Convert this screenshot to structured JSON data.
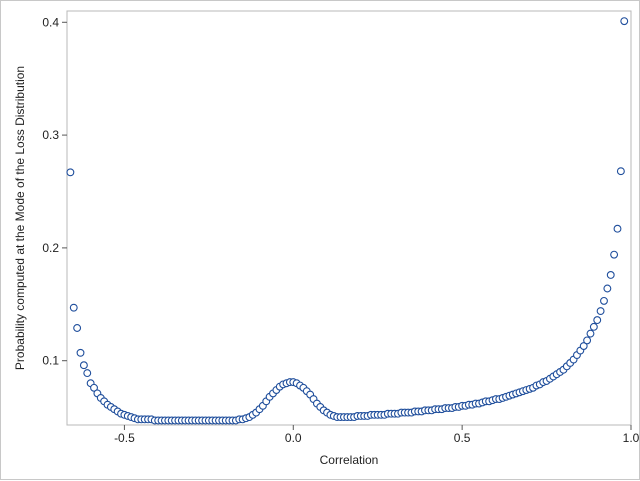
{
  "chart_data": {
    "type": "scatter",
    "title": "",
    "xlabel": "Correlation",
    "ylabel": "Probability computed at the Mode of the Loss Distribution",
    "xlim": [
      -0.67,
      1.0
    ],
    "ylim": [
      0.043,
      0.41
    ],
    "xticks": [
      -0.5,
      0.0,
      0.5,
      1.0
    ],
    "xtick_labels": [
      "-0.5",
      "0.0",
      "0.5",
      "1.0"
    ],
    "yticks": [
      0.1,
      0.2,
      0.3,
      0.4
    ],
    "ytick_labels": [
      "0.1",
      "0.2",
      "0.3",
      "0.4"
    ],
    "grid": false,
    "legend": "none",
    "marker": "open-circle",
    "marker_color": "#1f4e9c",
    "points": [
      [
        -0.66,
        0.267
      ],
      [
        -0.65,
        0.147
      ],
      [
        -0.64,
        0.129
      ],
      [
        -0.63,
        0.107
      ],
      [
        -0.62,
        0.096
      ],
      [
        -0.61,
        0.089
      ],
      [
        -0.6,
        0.08
      ],
      [
        -0.59,
        0.076
      ],
      [
        -0.58,
        0.071
      ],
      [
        -0.57,
        0.067
      ],
      [
        -0.56,
        0.064
      ],
      [
        -0.55,
        0.061
      ],
      [
        -0.54,
        0.059
      ],
      [
        -0.53,
        0.057
      ],
      [
        -0.52,
        0.055
      ],
      [
        -0.51,
        0.053
      ],
      [
        -0.5,
        0.052
      ],
      [
        -0.49,
        0.051
      ],
      [
        -0.48,
        0.05
      ],
      [
        -0.47,
        0.049
      ],
      [
        -0.46,
        0.048
      ],
      [
        -0.45,
        0.048
      ],
      [
        -0.44,
        0.048
      ],
      [
        -0.43,
        0.048
      ],
      [
        -0.42,
        0.048
      ],
      [
        -0.41,
        0.047
      ],
      [
        -0.4,
        0.047
      ],
      [
        -0.39,
        0.047
      ],
      [
        -0.38,
        0.047
      ],
      [
        -0.37,
        0.047
      ],
      [
        -0.36,
        0.047
      ],
      [
        -0.35,
        0.047
      ],
      [
        -0.34,
        0.047
      ],
      [
        -0.33,
        0.047
      ],
      [
        -0.32,
        0.047
      ],
      [
        -0.31,
        0.047
      ],
      [
        -0.3,
        0.047
      ],
      [
        -0.29,
        0.047
      ],
      [
        -0.28,
        0.047
      ],
      [
        -0.27,
        0.047
      ],
      [
        -0.26,
        0.047
      ],
      [
        -0.25,
        0.047
      ],
      [
        -0.24,
        0.047
      ],
      [
        -0.23,
        0.047
      ],
      [
        -0.22,
        0.047
      ],
      [
        -0.21,
        0.047
      ],
      [
        -0.2,
        0.047
      ],
      [
        -0.19,
        0.047
      ],
      [
        -0.18,
        0.047
      ],
      [
        -0.17,
        0.047
      ],
      [
        -0.16,
        0.048
      ],
      [
        -0.15,
        0.048
      ],
      [
        -0.14,
        0.049
      ],
      [
        -0.13,
        0.05
      ],
      [
        -0.12,
        0.052
      ],
      [
        -0.11,
        0.054
      ],
      [
        -0.1,
        0.057
      ],
      [
        -0.09,
        0.06
      ],
      [
        -0.08,
        0.064
      ],
      [
        -0.07,
        0.068
      ],
      [
        -0.06,
        0.071
      ],
      [
        -0.05,
        0.074
      ],
      [
        -0.04,
        0.077
      ],
      [
        -0.03,
        0.079
      ],
      [
        -0.02,
        0.08
      ],
      [
        -0.01,
        0.081
      ],
      [
        0.0,
        0.081
      ],
      [
        0.01,
        0.08
      ],
      [
        0.02,
        0.078
      ],
      [
        0.03,
        0.076
      ],
      [
        0.04,
        0.073
      ],
      [
        0.05,
        0.07
      ],
      [
        0.06,
        0.066
      ],
      [
        0.07,
        0.062
      ],
      [
        0.08,
        0.059
      ],
      [
        0.09,
        0.056
      ],
      [
        0.1,
        0.054
      ],
      [
        0.11,
        0.052
      ],
      [
        0.12,
        0.051
      ],
      [
        0.13,
        0.05
      ],
      [
        0.14,
        0.05
      ],
      [
        0.15,
        0.05
      ],
      [
        0.16,
        0.05
      ],
      [
        0.17,
        0.05
      ],
      [
        0.18,
        0.05
      ],
      [
        0.19,
        0.051
      ],
      [
        0.2,
        0.051
      ],
      [
        0.21,
        0.051
      ],
      [
        0.22,
        0.051
      ],
      [
        0.23,
        0.052
      ],
      [
        0.24,
        0.052
      ],
      [
        0.25,
        0.052
      ],
      [
        0.26,
        0.052
      ],
      [
        0.27,
        0.052
      ],
      [
        0.28,
        0.053
      ],
      [
        0.29,
        0.053
      ],
      [
        0.3,
        0.053
      ],
      [
        0.31,
        0.053
      ],
      [
        0.32,
        0.054
      ],
      [
        0.33,
        0.054
      ],
      [
        0.34,
        0.054
      ],
      [
        0.35,
        0.054
      ],
      [
        0.36,
        0.055
      ],
      [
        0.37,
        0.055
      ],
      [
        0.38,
        0.055
      ],
      [
        0.39,
        0.056
      ],
      [
        0.4,
        0.056
      ],
      [
        0.41,
        0.056
      ],
      [
        0.42,
        0.057
      ],
      [
        0.43,
        0.057
      ],
      [
        0.44,
        0.057
      ],
      [
        0.45,
        0.058
      ],
      [
        0.46,
        0.058
      ],
      [
        0.47,
        0.058
      ],
      [
        0.48,
        0.059
      ],
      [
        0.49,
        0.059
      ],
      [
        0.5,
        0.06
      ],
      [
        0.51,
        0.06
      ],
      [
        0.52,
        0.061
      ],
      [
        0.53,
        0.061
      ],
      [
        0.54,
        0.062
      ],
      [
        0.55,
        0.062
      ],
      [
        0.56,
        0.063
      ],
      [
        0.57,
        0.064
      ],
      [
        0.58,
        0.064
      ],
      [
        0.59,
        0.065
      ],
      [
        0.6,
        0.066
      ],
      [
        0.61,
        0.066
      ],
      [
        0.62,
        0.067
      ],
      [
        0.63,
        0.068
      ],
      [
        0.64,
        0.069
      ],
      [
        0.65,
        0.07
      ],
      [
        0.66,
        0.071
      ],
      [
        0.67,
        0.072
      ],
      [
        0.68,
        0.073
      ],
      [
        0.69,
        0.074
      ],
      [
        0.7,
        0.075
      ],
      [
        0.71,
        0.076
      ],
      [
        0.72,
        0.078
      ],
      [
        0.73,
        0.079
      ],
      [
        0.74,
        0.081
      ],
      [
        0.75,
        0.082
      ],
      [
        0.76,
        0.084
      ],
      [
        0.77,
        0.086
      ],
      [
        0.78,
        0.088
      ],
      [
        0.79,
        0.09
      ],
      [
        0.8,
        0.092
      ],
      [
        0.81,
        0.095
      ],
      [
        0.82,
        0.098
      ],
      [
        0.83,
        0.101
      ],
      [
        0.84,
        0.105
      ],
      [
        0.85,
        0.109
      ],
      [
        0.86,
        0.113
      ],
      [
        0.87,
        0.118
      ],
      [
        0.88,
        0.124
      ],
      [
        0.89,
        0.13
      ],
      [
        0.9,
        0.136
      ],
      [
        0.91,
        0.144
      ],
      [
        0.92,
        0.153
      ],
      [
        0.93,
        0.164
      ],
      [
        0.94,
        0.176
      ],
      [
        0.95,
        0.194
      ],
      [
        0.96,
        0.217
      ],
      [
        0.97,
        0.268
      ],
      [
        0.98,
        0.401
      ]
    ]
  }
}
